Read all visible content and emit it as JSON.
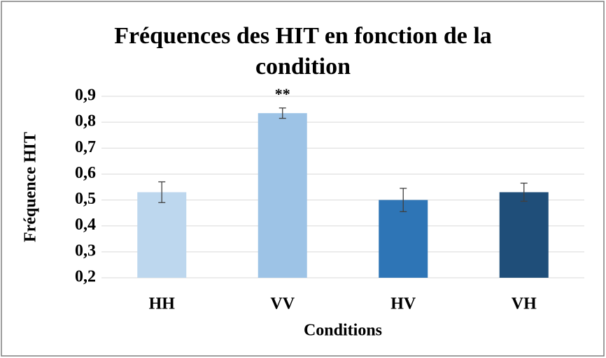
{
  "chart_data": {
    "type": "bar",
    "title": "Fréquences des HIT en fonction de la condition",
    "xlabel": "Conditions",
    "ylabel": "Fréquence  HIT",
    "categories": [
      "HH",
      "VV",
      "HV",
      "VH"
    ],
    "values": [
      0.53,
      0.835,
      0.5,
      0.53
    ],
    "errors": [
      0.04,
      0.02,
      0.045,
      0.035
    ],
    "colors": [
      "#bdd7ee",
      "#9dc3e6",
      "#2e75b6",
      "#1f4e79"
    ],
    "annotation": "**",
    "ylim": [
      0.2,
      0.9
    ],
    "yticks": [
      {
        "value": 0.2,
        "label": "0,2"
      },
      {
        "value": 0.3,
        "label": "0,3"
      },
      {
        "value": 0.4,
        "label": "0,4"
      },
      {
        "value": 0.5,
        "label": "0,5"
      },
      {
        "value": 0.6,
        "label": "0,6"
      },
      {
        "value": 0.7,
        "label": "0,7"
      },
      {
        "value": 0.8,
        "label": "0,8"
      },
      {
        "value": 0.9,
        "label": "0,9"
      }
    ],
    "grid": true
  }
}
